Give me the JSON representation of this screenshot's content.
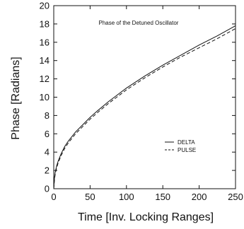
{
  "chart_data": {
    "type": "line",
    "title": "Phase of the Detuned Oscillator",
    "xlabel": "Time [Inv. Locking Ranges]",
    "ylabel": "Phase [Radians]",
    "xlim": [
      0,
      250
    ],
    "ylim": [
      0,
      20
    ],
    "xticks": [
      0,
      50,
      100,
      150,
      200,
      250
    ],
    "yticks": [
      0,
      2,
      4,
      6,
      8,
      10,
      12,
      14,
      16,
      18,
      20
    ],
    "grid": false,
    "legend_position": "lower-right",
    "series": [
      {
        "name": "DELTA",
        "line_style": "solid",
        "color": "#111111",
        "x": [
          0,
          1,
          2,
          4,
          6,
          10,
          15,
          20,
          30,
          40,
          50,
          60,
          75,
          100,
          125,
          150,
          175,
          200,
          225,
          250
        ],
        "y": [
          0,
          1.2,
          1.8,
          2.5,
          3.0,
          3.8,
          4.6,
          5.2,
          6.2,
          7.0,
          7.8,
          8.5,
          9.5,
          11.0,
          12.3,
          13.5,
          14.6,
          15.7,
          16.7,
          17.8
        ]
      },
      {
        "name": "PULSE",
        "line_style": "dashed",
        "color": "#111111",
        "x": [
          0,
          1,
          2,
          4,
          6,
          10,
          15,
          20,
          30,
          40,
          50,
          60,
          75,
          100,
          125,
          150,
          175,
          200,
          225,
          250
        ],
        "y": [
          0,
          1.0,
          1.6,
          2.3,
          2.8,
          3.6,
          4.4,
          5.0,
          6.0,
          6.8,
          7.6,
          8.3,
          9.3,
          10.8,
          12.1,
          13.3,
          14.4,
          15.4,
          16.4,
          17.5
        ]
      }
    ]
  }
}
